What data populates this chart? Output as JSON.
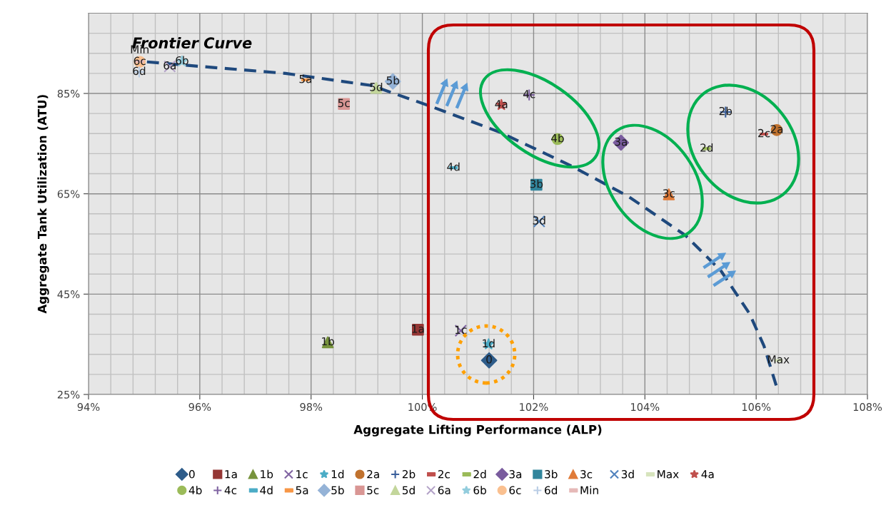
{
  "chart_data": {
    "type": "scatter",
    "xlabel": "Aggregate Lifting Performance (ALP)",
    "ylabel": "Aggregate Tank Utilization (ATU)",
    "annotations": [
      "Frontier Curve"
    ],
    "xlim": [
      94,
      108
    ],
    "xticks": [
      {
        "value": 94,
        "label": "94%"
      },
      {
        "value": 96,
        "label": "96%"
      },
      {
        "value": 98,
        "label": "98%"
      },
      {
        "value": 100,
        "label": "100%"
      },
      {
        "value": 102,
        "label": "102%"
      },
      {
        "value": 104,
        "label": "104%"
      },
      {
        "value": 106,
        "label": "106%"
      },
      {
        "value": 108,
        "label": "108%"
      }
    ],
    "ylim": [
      25,
      101
    ],
    "yticks": [
      {
        "value": 25,
        "label": "25%"
      },
      {
        "value": 45,
        "label": "45%"
      },
      {
        "value": 65,
        "label": "65%"
      },
      {
        "value": 85,
        "label": "85%"
      }
    ],
    "grid": true,
    "legend": "bottom",
    "series": [
      {
        "type": "line",
        "color": "#1f497d",
        "line_style": "dashed",
        "marker": "none",
        "x": [
          95.05,
          96.0,
          97.54,
          99.08,
          100.11,
          101.39,
          102.67,
          103.7,
          104.73,
          105.37,
          105.88,
          106.14,
          106.36
        ],
        "values": [
          91.3,
          90.4,
          89.0,
          86.6,
          82.6,
          77.3,
          70.6,
          64.5,
          56.7,
          49.6,
          41.1,
          34.7,
          26.8
        ]
      },
      {
        "name": "0",
        "color": "#2e5c8a",
        "marker": "diamond",
        "x": [
          101.2
        ],
        "values": [
          31.8
        ]
      },
      {
        "name": "1a",
        "color": "#953735",
        "marker": "square",
        "x": [
          99.92
        ],
        "values": [
          37.9
        ]
      },
      {
        "name": "1b",
        "color": "#77933c",
        "marker": "triangle",
        "x": [
          98.3
        ],
        "values": [
          35.4
        ]
      },
      {
        "name": "1c",
        "color": "#8064a2",
        "marker": "x",
        "x": [
          100.69
        ],
        "values": [
          37.7
        ]
      },
      {
        "name": "1d",
        "color": "#4bacc6",
        "marker": "star",
        "x": [
          101.19
        ],
        "values": [
          35.0
        ]
      },
      {
        "name": "2a",
        "color": "#c0722e",
        "marker": "circle",
        "x": [
          106.37
        ],
        "values": [
          77.7
        ]
      },
      {
        "name": "2b",
        "color": "#3a5f9b",
        "marker": "plus",
        "x": [
          105.45
        ],
        "values": [
          81.3
        ]
      },
      {
        "name": "2c",
        "color": "#c0504d",
        "x": [
          106.14
        ],
        "values": [
          76.9
        ]
      },
      {
        "name": "2d",
        "color": "#9bbb59",
        "x": [
          105.11
        ],
        "values": [
          74.0
        ]
      },
      {
        "name": "3a",
        "color": "#7a5c9e",
        "marker": "diamond",
        "x": [
          103.57
        ],
        "values": [
          75.2
        ]
      },
      {
        "name": "3b",
        "color": "#31859c",
        "marker": "square",
        "x": [
          102.05
        ],
        "values": [
          66.8
        ]
      },
      {
        "name": "3c",
        "color": "#e07b39",
        "marker": "triangle",
        "x": [
          104.43
        ],
        "values": [
          64.9
        ]
      },
      {
        "name": "3d",
        "color": "#4f81bd",
        "marker": "x",
        "x": [
          102.1
        ],
        "values": [
          59.5
        ]
      },
      {
        "name": "4a",
        "color": "#c0504d",
        "marker": "star",
        "x": [
          101.42
        ],
        "values": [
          82.7
        ]
      },
      {
        "name": "4b",
        "color": "#9bbb59",
        "marker": "circle",
        "x": [
          102.43
        ],
        "values": [
          75.9
        ]
      },
      {
        "name": "4c",
        "color": "#8064a2",
        "marker": "plus",
        "x": [
          101.92
        ],
        "values": [
          84.7
        ]
      },
      {
        "name": "4d",
        "color": "#4bacc6",
        "x": [
          100.56
        ],
        "values": [
          70.2
        ]
      },
      {
        "name": "5a",
        "color": "#f79646",
        "x": [
          97.9
        ],
        "values": [
          87.7
        ]
      },
      {
        "name": "5b",
        "color": "#95b3d7",
        "marker": "diamond",
        "x": [
          99.47
        ],
        "values": [
          87.4
        ]
      },
      {
        "name": "5c",
        "color": "#d99694",
        "marker": "square",
        "x": [
          98.59
        ],
        "values": [
          82.9
        ]
      },
      {
        "name": "5d",
        "color": "#c3d69b",
        "marker": "triangle",
        "x": [
          99.17
        ],
        "values": [
          86.1
        ]
      },
      {
        "name": "6a",
        "color": "#b3a2c7",
        "marker": "x",
        "x": [
          95.46
        ],
        "values": [
          90.4
        ]
      },
      {
        "name": "6b",
        "color": "#93cddd",
        "marker": "star",
        "x": [
          95.68
        ],
        "values": [
          91.4
        ]
      },
      {
        "name": "6c",
        "color": "#fac090",
        "marker": "circle",
        "x": [
          94.92
        ],
        "values": [
          91.3
        ]
      },
      {
        "name": "6d",
        "color": "#b9cde5",
        "marker": "plus",
        "x": [
          94.91
        ],
        "values": [
          89.3
        ]
      },
      {
        "name": "Min",
        "color": "#e6b9b8",
        "x": [
          94.92
        ],
        "values": [
          91.4
        ]
      },
      {
        "name": "Max",
        "color": "#d7e4bd",
        "x": [
          106.4
        ],
        "values": [
          31.8
        ]
      }
    ]
  }
}
